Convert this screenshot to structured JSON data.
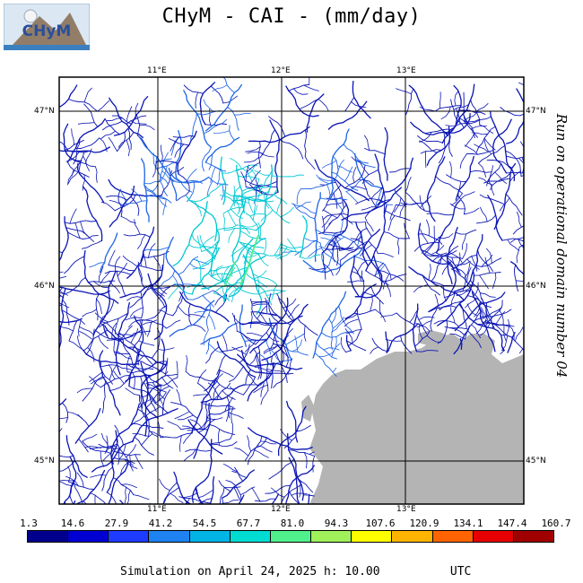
{
  "title": "CHyM - CAI - (mm/day)",
  "logo_text": "CHyM",
  "side_note": "Run on operational domain number 04",
  "footer": {
    "simulation": "Simulation on April 24, 2025 h: 10.00",
    "zone": "UTC"
  },
  "axes": {
    "lon_labels": [
      "11°E",
      "12°E",
      "13°E"
    ],
    "lat_labels": [
      "47°N",
      "46°N",
      "45°N"
    ]
  },
  "colorbar": {
    "labels": [
      "1.3",
      "14.6",
      "27.9",
      "41.2",
      "54.5",
      "67.7",
      "81.0",
      "94.3",
      "107.6",
      "120.9",
      "134.1",
      "147.4",
      "160.7"
    ],
    "colors": [
      "#00008c",
      "#0000d2",
      "#1e3cff",
      "#1e82f0",
      "#00b4e6",
      "#00dcd2",
      "#50f08c",
      "#a0f05a",
      "#ffff00",
      "#ffb400",
      "#ff6400",
      "#e60000",
      "#a00000"
    ]
  },
  "colors": {
    "sea": "#b4b4b4",
    "river_main": "#0a14b4",
    "river_mid": "#1e64e6",
    "river_high": "#00c8d2"
  }
}
